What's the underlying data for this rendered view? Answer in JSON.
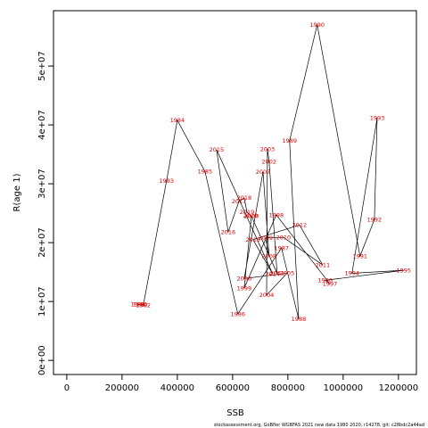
{
  "chart_data": {
    "type": "scatter",
    "x_label": "SSB",
    "y_label": "R(age 1)",
    "footer": "stockassessment.org, GoBfier WGBFAS 2021 new data 1980 2020, r14278, git: c28bdc2a44ad",
    "xlim": [
      -48000,
      1265000
    ],
    "ylim": [
      -2400000,
      59400000
    ],
    "xticks": [
      0,
      200000,
      400000,
      600000,
      800000,
      1000000,
      1200000
    ],
    "yticks": [
      {
        "value": 0,
        "label": "0e+00"
      },
      {
        "value": 10000000,
        "label": "1e+07"
      },
      {
        "value": 20000000,
        "label": "2e+07"
      },
      {
        "value": 30000000,
        "label": "3e+07"
      },
      {
        "value": 40000000,
        "label": "4e+07"
      },
      {
        "value": 50000000,
        "label": "5e+07"
      }
    ],
    "labels": [
      "1980",
      "1981",
      "1982",
      "1983",
      "1984",
      "1985",
      "1986",
      "1987",
      "1988",
      "1989",
      "1990",
      "1991",
      "1992",
      "1993",
      "1994",
      "1995",
      "1996",
      "1997",
      "1998",
      "1999",
      "2000",
      "2001",
      "2002",
      "2003",
      "2004",
      "2005",
      "2006",
      "2007",
      "2008",
      "2009",
      "2010",
      "2011",
      "2012",
      "2013",
      "2014",
      "2015",
      "2016",
      "2017",
      "2018",
      "2019",
      "2020"
    ],
    "x": [
      265000,
      258000,
      277000,
      361000,
      400000,
      500000,
      619000,
      777000,
      839000,
      806000,
      906000,
      1061000,
      1113000,
      1123000,
      1032000,
      1219000,
      935000,
      952000,
      758000,
      642000,
      668000,
      761000,
      732000,
      726000,
      723000,
      797000,
      642000,
      710000,
      732000,
      719000,
      784000,
      926000,
      842000,
      674000,
      745000,
      542000,
      584000,
      623000,
      642000,
      652000,
      665000
    ],
    "series": [
      {
        "name": "R(age 1)",
        "color": "#e00000",
        "line_color": "#000000",
        "values": [
          9550000,
          9500000,
          9400000,
          30500000,
          40800000,
          32100000,
          7900000,
          19100000,
          7000000,
          37300000,
          57000000,
          17700000,
          23900000,
          41200000,
          14800000,
          15300000,
          13600000,
          13000000,
          24700000,
          12300000,
          24500000,
          14800000,
          33800000,
          35900000,
          11100000,
          14800000,
          13900000,
          32000000,
          17700000,
          20800000,
          20900000,
          16200000,
          23000000,
          20500000,
          14700000,
          35800000,
          21800000,
          27000000,
          27600000,
          25200000,
          24600000
        ]
      }
    ]
  }
}
